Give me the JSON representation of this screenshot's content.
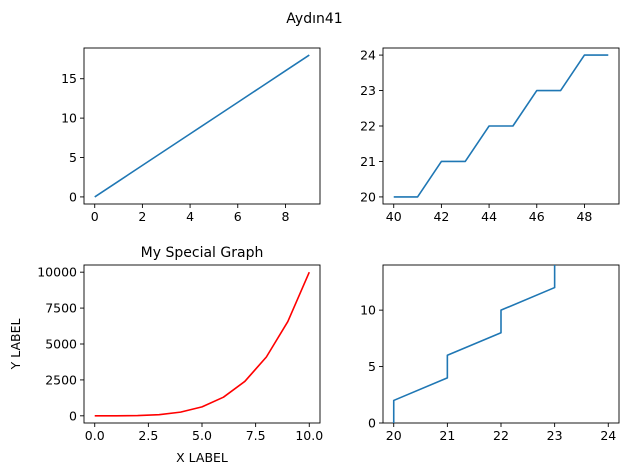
{
  "figure": {
    "suptitle": "Aydın41"
  },
  "chart_data": [
    {
      "type": "line",
      "title": "",
      "xlabel": "",
      "ylabel": "",
      "x": [
        0,
        1,
        2,
        3,
        4,
        5,
        6,
        7,
        8,
        9
      ],
      "series": [
        {
          "values": [
            0,
            2,
            4,
            6,
            8,
            10,
            12,
            14,
            16,
            18
          ],
          "color": "#1f77b4"
        }
      ],
      "xlim": [
        -0.45,
        9.45
      ],
      "ylim": [
        -0.9,
        18.9
      ],
      "xticks": [
        0,
        2,
        4,
        6,
        8
      ],
      "xtick_labels": [
        "0",
        "2",
        "4",
        "6",
        "8"
      ],
      "yticks": [
        0,
        5,
        10,
        15
      ],
      "ytick_labels": [
        "0",
        "5",
        "10",
        "15"
      ],
      "grid": false
    },
    {
      "type": "line",
      "title": "",
      "xlabel": "",
      "ylabel": "",
      "x": [
        40,
        41,
        42,
        43,
        44,
        45,
        46,
        47,
        48,
        49
      ],
      "series": [
        {
          "values": [
            20,
            20,
            21,
            21,
            22,
            22,
            23,
            23,
            24,
            24
          ],
          "color": "#1f77b4"
        }
      ],
      "xlim": [
        39.55,
        49.45
      ],
      "ylim": [
        19.8,
        24.2
      ],
      "xticks": [
        40,
        42,
        44,
        46,
        48
      ],
      "xtick_labels": [
        "40",
        "42",
        "44",
        "46",
        "48"
      ],
      "yticks": [
        20,
        21,
        22,
        23,
        24
      ],
      "ytick_labels": [
        "20",
        "21",
        "22",
        "23",
        "24"
      ],
      "grid": false
    },
    {
      "type": "line",
      "title": "My Special Graph",
      "xlabel": "X LABEL",
      "ylabel": "Y LABEL",
      "x": [
        0,
        1,
        2,
        3,
        4,
        5,
        6,
        7,
        8,
        9,
        10
      ],
      "series": [
        {
          "values": [
            0,
            1,
            16,
            81,
            256,
            625,
            1296,
            2401,
            4096,
            6561,
            10000
          ],
          "color": "#ff0000"
        }
      ],
      "xlim": [
        -0.5,
        10.5
      ],
      "ylim": [
        -500,
        10500
      ],
      "xticks": [
        0,
        2.5,
        5,
        7.5,
        10
      ],
      "xtick_labels": [
        "0.0",
        "2.5",
        "5.0",
        "7.5",
        "10.0"
      ],
      "yticks": [
        0,
        2500,
        5000,
        7500,
        10000
      ],
      "ytick_labels": [
        "0",
        "2500",
        "5000",
        "7500",
        "10000"
      ],
      "grid": false
    },
    {
      "type": "line",
      "title": "",
      "xlabel": "",
      "ylabel": "",
      "x": [
        20,
        20,
        21,
        21,
        22,
        22,
        23,
        23
      ],
      "series": [
        {
          "values": [
            0,
            2,
            4,
            6,
            8,
            10,
            12,
            14
          ],
          "color": "#1f77b4"
        }
      ],
      "xlim": [
        19.8,
        24.2
      ],
      "ylim": [
        0,
        14
      ],
      "xticks": [
        20,
        21,
        22,
        23,
        24
      ],
      "xtick_labels": [
        "20",
        "21",
        "22",
        "23",
        "24"
      ],
      "yticks": [
        0,
        5,
        10
      ],
      "ytick_labels": [
        "0",
        "5",
        "10"
      ],
      "grid": false
    }
  ]
}
